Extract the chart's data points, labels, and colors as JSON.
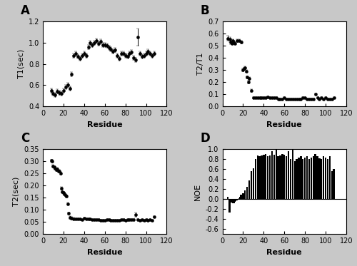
{
  "panel_A": {
    "label": "A",
    "ylabel": "T1(sec)",
    "xlabel": "Residue",
    "xlim": [
      0,
      120
    ],
    "ylim": [
      0.4,
      1.2
    ],
    "yticks": [
      0.4,
      0.6,
      0.8,
      1.0,
      1.2
    ],
    "xticks": [
      0,
      20,
      40,
      60,
      80,
      100,
      120
    ],
    "data_x": [
      8,
      10,
      12,
      14,
      16,
      18,
      20,
      22,
      24,
      26,
      28,
      30,
      32,
      34,
      36,
      38,
      40,
      42,
      44,
      46,
      48,
      50,
      52,
      54,
      56,
      58,
      60,
      62,
      64,
      66,
      68,
      70,
      72,
      74,
      76,
      78,
      80,
      82,
      84,
      86,
      88,
      90,
      92,
      94,
      96,
      98,
      100,
      102,
      104,
      106,
      108
    ],
    "data_y": [
      0.55,
      0.52,
      0.51,
      0.54,
      0.53,
      0.52,
      0.55,
      0.58,
      0.6,
      0.57,
      0.7,
      0.88,
      0.9,
      0.87,
      0.85,
      0.88,
      0.9,
      0.88,
      0.96,
      1.0,
      0.98,
      1.0,
      1.02,
      0.99,
      1.01,
      0.98,
      0.98,
      0.97,
      0.95,
      0.94,
      0.92,
      0.93,
      0.88,
      0.85,
      0.9,
      0.9,
      0.88,
      0.87,
      0.9,
      0.91,
      0.86,
      0.84,
      1.05,
      0.9,
      0.87,
      0.88,
      0.9,
      0.92,
      0.9,
      0.88,
      0.9
    ],
    "data_yerr": [
      0.02,
      0.02,
      0.02,
      0.02,
      0.02,
      0.02,
      0.02,
      0.02,
      0.02,
      0.02,
      0.02,
      0.02,
      0.02,
      0.02,
      0.02,
      0.02,
      0.02,
      0.02,
      0.02,
      0.02,
      0.02,
      0.02,
      0.02,
      0.02,
      0.02,
      0.02,
      0.02,
      0.02,
      0.02,
      0.02,
      0.02,
      0.02,
      0.02,
      0.02,
      0.02,
      0.02,
      0.02,
      0.02,
      0.02,
      0.02,
      0.02,
      0.02,
      0.08,
      0.02,
      0.02,
      0.02,
      0.02,
      0.02,
      0.02,
      0.02,
      0.02
    ]
  },
  "panel_B": {
    "label": "B",
    "ylabel": "T2/T1",
    "xlabel": "Residue",
    "xlim": [
      0,
      120
    ],
    "ylim": [
      0.0,
      0.7
    ],
    "yticks": [
      0.0,
      0.1,
      0.2,
      0.3,
      0.4,
      0.5,
      0.6,
      0.7
    ],
    "xticks": [
      0,
      20,
      40,
      60,
      80,
      100,
      120
    ],
    "data_x": [
      5,
      7,
      8,
      9,
      10,
      11,
      12,
      14,
      16,
      18,
      20,
      21,
      22,
      23,
      24,
      25,
      26,
      28,
      30,
      32,
      34,
      36,
      38,
      40,
      42,
      44,
      46,
      48,
      50,
      52,
      54,
      56,
      58,
      60,
      62,
      64,
      66,
      68,
      70,
      72,
      74,
      76,
      78,
      80,
      82,
      84,
      86,
      88,
      90,
      92,
      94,
      96,
      98,
      100,
      102,
      104,
      106,
      108
    ],
    "data_y": [
      0.56,
      0.55,
      0.53,
      0.52,
      0.54,
      0.53,
      0.52,
      0.54,
      0.54,
      0.53,
      0.3,
      0.31,
      0.32,
      0.29,
      0.24,
      0.2,
      0.23,
      0.13,
      0.07,
      0.07,
      0.07,
      0.07,
      0.07,
      0.07,
      0.07,
      0.08,
      0.07,
      0.07,
      0.07,
      0.07,
      0.06,
      0.06,
      0.06,
      0.07,
      0.06,
      0.06,
      0.06,
      0.06,
      0.06,
      0.06,
      0.06,
      0.06,
      0.07,
      0.07,
      0.06,
      0.06,
      0.06,
      0.06,
      0.1,
      0.07,
      0.06,
      0.07,
      0.06,
      0.07,
      0.06,
      0.06,
      0.06,
      0.07
    ],
    "data_yerr": [
      0.02,
      0.02,
      0.02,
      0.01,
      0.01,
      0.01,
      0.01,
      0.01,
      0.01,
      0.01,
      0.01,
      0.01,
      0.01,
      0.01,
      0.01,
      0.01,
      0.01,
      0.01,
      0.005,
      0.005,
      0.005,
      0.005,
      0.005,
      0.005,
      0.005,
      0.005,
      0.005,
      0.005,
      0.005,
      0.005,
      0.005,
      0.005,
      0.005,
      0.005,
      0.005,
      0.005,
      0.005,
      0.005,
      0.005,
      0.005,
      0.005,
      0.005,
      0.005,
      0.005,
      0.005,
      0.005,
      0.005,
      0.005,
      0.005,
      0.005,
      0.005,
      0.005,
      0.005,
      0.005,
      0.005,
      0.005,
      0.005,
      0.005
    ]
  },
  "panel_C": {
    "label": "C",
    "ylabel": "T2(sec)",
    "xlabel": "Residue",
    "xlim": [
      0,
      120
    ],
    "ylim": [
      0.0,
      0.35
    ],
    "yticks": [
      0.0,
      0.05,
      0.1,
      0.15,
      0.2,
      0.25,
      0.3,
      0.35
    ],
    "xticks": [
      0,
      20,
      40,
      60,
      80,
      100,
      120
    ],
    "data_x": [
      8,
      9,
      10,
      11,
      12,
      13,
      14,
      15,
      16,
      17,
      18,
      19,
      20,
      21,
      22,
      23,
      24,
      25,
      26,
      28,
      30,
      32,
      34,
      36,
      38,
      40,
      42,
      44,
      46,
      48,
      50,
      52,
      54,
      56,
      58,
      60,
      62,
      64,
      66,
      68,
      70,
      72,
      74,
      76,
      78,
      80,
      82,
      84,
      86,
      88,
      90,
      92,
      94,
      96,
      98,
      100,
      102,
      104,
      106,
      108
    ],
    "data_y": [
      0.302,
      0.3,
      0.28,
      0.275,
      0.27,
      0.265,
      0.268,
      0.26,
      0.26,
      0.25,
      0.188,
      0.175,
      0.17,
      0.165,
      0.16,
      0.155,
      0.125,
      0.085,
      0.068,
      0.065,
      0.063,
      0.062,
      0.063,
      0.062,
      0.06,
      0.065,
      0.062,
      0.063,
      0.063,
      0.06,
      0.06,
      0.058,
      0.058,
      0.057,
      0.057,
      0.057,
      0.058,
      0.058,
      0.057,
      0.057,
      0.057,
      0.057,
      0.057,
      0.058,
      0.058,
      0.057,
      0.058,
      0.058,
      0.058,
      0.058,
      0.08,
      0.058,
      0.057,
      0.058,
      0.057,
      0.058,
      0.057,
      0.058,
      0.057,
      0.07
    ],
    "data_yerr": [
      0.005,
      0.005,
      0.005,
      0.005,
      0.005,
      0.005,
      0.005,
      0.005,
      0.005,
      0.005,
      0.005,
      0.005,
      0.005,
      0.005,
      0.005,
      0.005,
      0.005,
      0.005,
      0.005,
      0.005,
      0.005,
      0.003,
      0.003,
      0.003,
      0.003,
      0.003,
      0.003,
      0.003,
      0.003,
      0.003,
      0.003,
      0.003,
      0.003,
      0.003,
      0.003,
      0.003,
      0.003,
      0.003,
      0.003,
      0.003,
      0.003,
      0.003,
      0.003,
      0.003,
      0.003,
      0.003,
      0.003,
      0.003,
      0.003,
      0.003,
      0.01,
      0.003,
      0.003,
      0.003,
      0.003,
      0.003,
      0.003,
      0.003,
      0.003,
      0.003
    ]
  },
  "panel_D": {
    "label": "D",
    "ylabel": "NOE",
    "xlabel": "Residue",
    "xlim": [
      0,
      120
    ],
    "ylim": [
      -0.7,
      1.0
    ],
    "yticks": [
      -0.6,
      -0.4,
      -0.2,
      0.0,
      0.2,
      0.4,
      0.6,
      0.8,
      1.0
    ],
    "xticks": [
      0,
      20,
      40,
      60,
      80,
      100,
      120
    ],
    "bar_x": [
      3,
      5,
      7,
      8,
      9,
      10,
      11,
      12,
      13,
      14,
      15,
      16,
      17,
      18,
      20,
      22,
      24,
      26,
      28,
      30,
      32,
      34,
      36,
      38,
      40,
      42,
      44,
      46,
      48,
      50,
      52,
      54,
      56,
      58,
      60,
      62,
      64,
      66,
      68,
      70,
      72,
      74,
      76,
      78,
      80,
      82,
      84,
      86,
      88,
      90,
      92,
      94,
      96,
      98,
      100,
      102,
      104,
      106,
      108
    ],
    "bar_y": [
      0.0,
      0.05,
      -0.27,
      -0.05,
      -0.07,
      -0.09,
      -0.08,
      -0.06,
      -0.04,
      -0.03,
      -0.02,
      0.02,
      0.04,
      0.08,
      0.12,
      0.17,
      0.25,
      0.37,
      0.55,
      0.62,
      0.8,
      0.87,
      0.85,
      0.87,
      0.88,
      0.9,
      0.85,
      0.87,
      0.95,
      0.88,
      1.0,
      0.85,
      0.87,
      0.9,
      0.88,
      0.85,
      0.95,
      0.8,
      1.0,
      0.75,
      0.8,
      0.83,
      0.85,
      0.8,
      0.83,
      0.85,
      0.8,
      0.83,
      0.85,
      0.9,
      0.85,
      0.82,
      0.8,
      0.85,
      0.83,
      0.8,
      0.85,
      0.55,
      0.6
    ]
  },
  "figure_bg": "#c8c8c8",
  "axes_bg": "#ffffff",
  "marker_color": "black",
  "marker_size": 3,
  "label_fontsize": 8,
  "tick_fontsize": 7,
  "panel_label_fontsize": 12
}
